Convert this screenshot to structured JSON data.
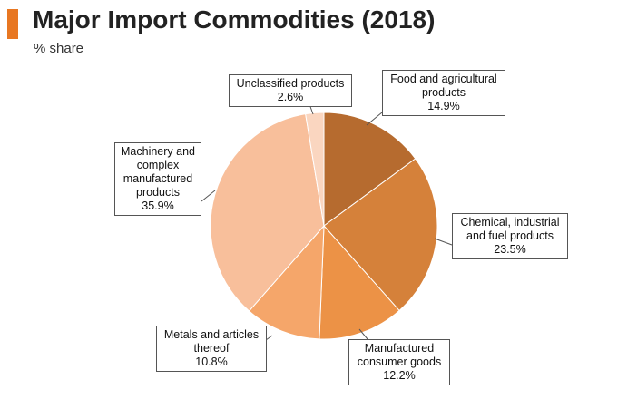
{
  "header": {
    "title": "Major Import Commodities (2018)",
    "subtitle": "% share",
    "accent_color": "#e87722"
  },
  "chart_data": {
    "type": "pie",
    "title": "Major Import Commodities (2018)",
    "subtitle": "% share",
    "unit": "%",
    "start_angle": "12 o'clock, clockwise",
    "slices": [
      {
        "label": "Food and agricultural products",
        "value": 14.9,
        "value_text": "14.9%",
        "color": "#b66b2f"
      },
      {
        "label": "Chemical, industrial and fuel products",
        "value": 23.5,
        "value_text": "23.5%",
        "color": "#d5813a"
      },
      {
        "label": "Manufactured consumer goods",
        "value": 12.2,
        "value_text": "12.2%",
        "color": "#ec9246"
      },
      {
        "label": "Metals and articles thereof",
        "value": 10.8,
        "value_text": "10.8%",
        "color": "#f5a66a"
      },
      {
        "label": "Machinery and complex manufactured products",
        "value": 35.9,
        "value_text": "35.9%",
        "color": "#f8bf9b"
      },
      {
        "label": "Unclassified products",
        "value": 2.6,
        "value_text": "2.6%",
        "color": "#fad6c0"
      }
    ]
  }
}
